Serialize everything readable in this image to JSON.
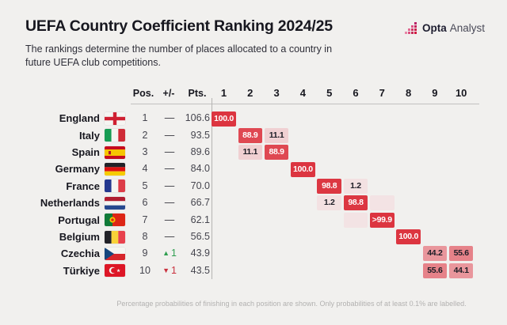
{
  "title": "UEFA Country Coefficient Ranking 2024/25",
  "subtitle": "The rankings determine the number of places allocated to a country in future UEFA club competitions.",
  "logo": {
    "bold": "Opta",
    "regular": "Analyst"
  },
  "columns": {
    "pos": "Pos.",
    "change": "+/-",
    "pts": "Pts."
  },
  "footnote": "Percentage probabilities of finishing in each position are shown. Only probabilities of at least 0.1% are labelled.",
  "chart_data": {
    "type": "heatmap",
    "x_labels": [
      "1",
      "2",
      "3",
      "4",
      "5",
      "6",
      "7",
      "8",
      "9",
      "10"
    ],
    "value_unit": "percent_probability",
    "rows": [
      {
        "country": "England",
        "flag": "england",
        "pos": "1",
        "change": {
          "dir": "none",
          "label": "—"
        },
        "pts": "106.6",
        "cells": [
          {
            "pos": 1,
            "label": "100.0",
            "value": 100
          }
        ]
      },
      {
        "country": "Italy",
        "flag": "italy",
        "pos": "2",
        "change": {
          "dir": "none",
          "label": "—"
        },
        "pts": "93.5",
        "cells": [
          {
            "pos": 2,
            "label": "88.9",
            "value": 88.9
          },
          {
            "pos": 3,
            "label": "11.1",
            "value": 11.1
          }
        ]
      },
      {
        "country": "Spain",
        "flag": "spain",
        "pos": "3",
        "change": {
          "dir": "none",
          "label": "—"
        },
        "pts": "89.6",
        "cells": [
          {
            "pos": 2,
            "label": "11.1",
            "value": 11.1
          },
          {
            "pos": 3,
            "label": "88.9",
            "value": 88.9
          }
        ]
      },
      {
        "country": "Germany",
        "flag": "germany",
        "pos": "4",
        "change": {
          "dir": "none",
          "label": "—"
        },
        "pts": "84.0",
        "cells": [
          {
            "pos": 4,
            "label": "100.0",
            "value": 100
          }
        ]
      },
      {
        "country": "France",
        "flag": "france",
        "pos": "5",
        "change": {
          "dir": "none",
          "label": "—"
        },
        "pts": "70.0",
        "cells": [
          {
            "pos": 5,
            "label": "98.8",
            "value": 98.8
          },
          {
            "pos": 6,
            "label": "1.2",
            "value": 1.2
          }
        ]
      },
      {
        "country": "Netherlands",
        "flag": "netherlands",
        "pos": "6",
        "change": {
          "dir": "none",
          "label": "—"
        },
        "pts": "66.7",
        "cells": [
          {
            "pos": 5,
            "label": "1.2",
            "value": 1.2
          },
          {
            "pos": 6,
            "label": "98.8",
            "value": 98.8
          },
          {
            "pos": 7,
            "label": "",
            "value": 0.05
          }
        ]
      },
      {
        "country": "Portugal",
        "flag": "portugal",
        "pos": "7",
        "change": {
          "dir": "none",
          "label": "—"
        },
        "pts": "62.1",
        "cells": [
          {
            "pos": 6,
            "label": "",
            "value": 0.05
          },
          {
            "pos": 7,
            "label": ">99.9",
            "value": 99.9
          }
        ]
      },
      {
        "country": "Belgium",
        "flag": "belgium",
        "pos": "8",
        "change": {
          "dir": "none",
          "label": "—"
        },
        "pts": "56.5",
        "cells": [
          {
            "pos": 8,
            "label": "100.0",
            "value": 100
          }
        ]
      },
      {
        "country": "Czechia",
        "flag": "czechia",
        "pos": "9",
        "change": {
          "dir": "up",
          "label": "1"
        },
        "pts": "43.9",
        "cells": [
          {
            "pos": 9,
            "label": "44.2",
            "value": 44.2
          },
          {
            "pos": 10,
            "label": "55.6",
            "value": 55.6
          }
        ]
      },
      {
        "country": "Türkiye",
        "flag": "turkiye",
        "pos": "10",
        "change": {
          "dir": "down",
          "label": "1"
        },
        "pts": "43.5",
        "cells": [
          {
            "pos": 9,
            "label": "55.6",
            "value": 55.6
          },
          {
            "pos": 10,
            "label": "44.1",
            "value": 44.1
          }
        ]
      }
    ],
    "colors": {
      "background": "#f1f0ee",
      "cell_low": "#f3e3e4",
      "cell_high": "#dc3540",
      "cell_text_dark": "#1d1d26",
      "cell_text_light": "#ffffff",
      "change_up": "#2f9e4f",
      "change_down": "#c9303d"
    }
  }
}
